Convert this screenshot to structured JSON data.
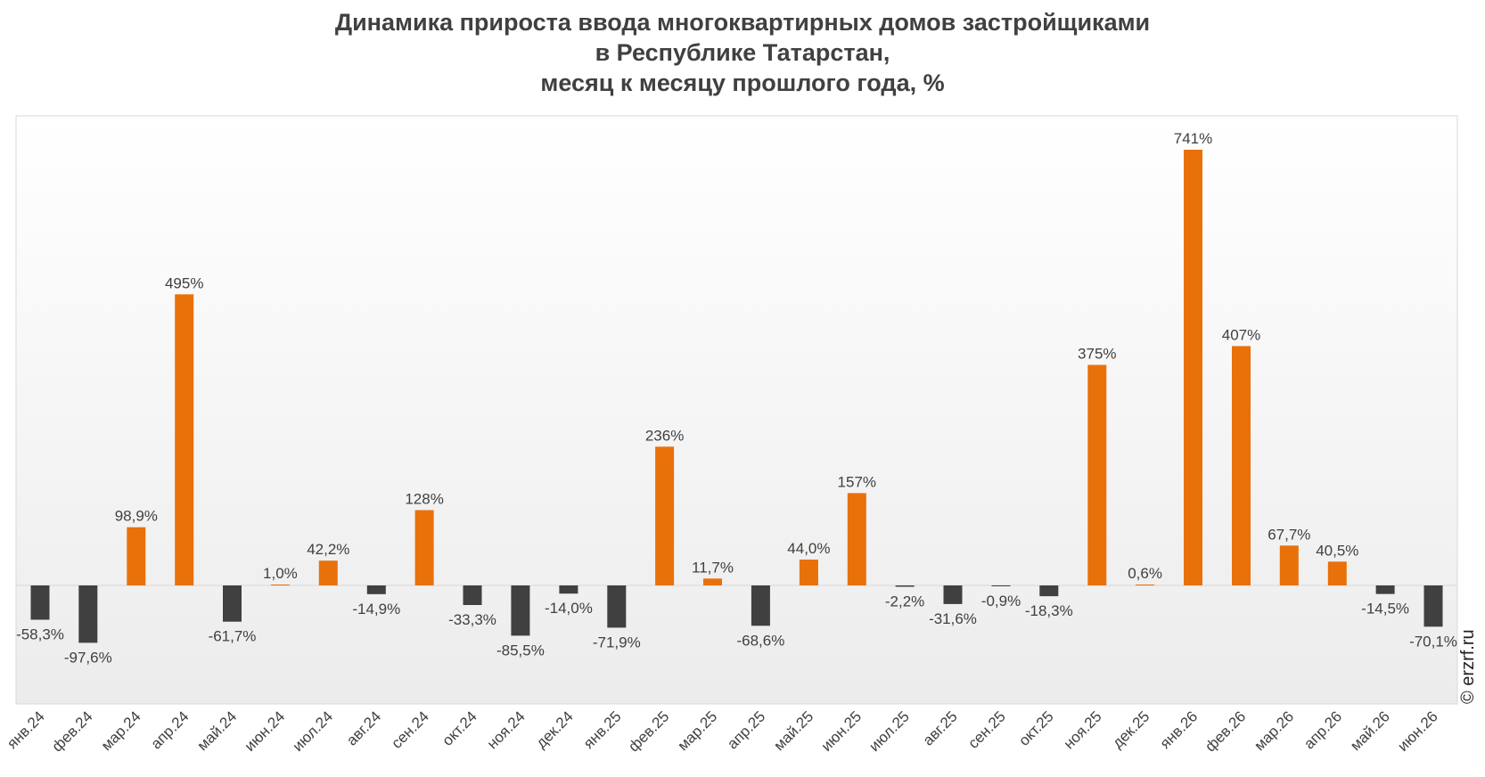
{
  "title_lines": [
    "Динамика прироста ввода многоквартирных домов застройщиками",
    "в Республике Татарстан,",
    "месяц к месяцу прошлого года, %"
  ],
  "watermark": "© erzrf.ru",
  "colors": {
    "positive": "#E8710A",
    "negative": "#404040",
    "label": "#404040",
    "plot_border": "#d9d9d9"
  },
  "chart_data": {
    "type": "bar",
    "title": "Динамика прироста ввода многоквартирных домов застройщиками в Республике Татарстан, месяц к месяцу прошлого года, %",
    "xlabel": "",
    "ylabel": "",
    "unit": "%",
    "grid": false,
    "legend": "none",
    "ylim": [
      -200,
      780
    ],
    "categories": [
      "янв.24",
      "фев.24",
      "мар.24",
      "апр.24",
      "май.24",
      "июн.24",
      "июл.24",
      "авг.24",
      "сен.24",
      "окт.24",
      "ноя.24",
      "дек.24",
      "янв.25",
      "фев.25",
      "мар.25",
      "апр.25",
      "май.25",
      "июн.25",
      "июл.25",
      "авг.25",
      "сен.25",
      "окт.25",
      "ноя.25",
      "дек.25",
      "янв.26",
      "фев.26",
      "мар.26",
      "апр.26",
      "май.26",
      "июн.26"
    ],
    "values": [
      -58.3,
      -97.6,
      98.9,
      495,
      -61.7,
      1.0,
      42.2,
      -14.9,
      128,
      -33.3,
      -85.5,
      -14.0,
      -71.9,
      236,
      11.7,
      -68.6,
      44.0,
      157,
      -2.2,
      -31.6,
      -0.9,
      -18.3,
      375,
      0.6,
      741,
      407,
      67.7,
      40.5,
      -14.5,
      -70.1
    ],
    "data_labels": [
      "-58,3%",
      "-97,6%",
      "98,9%",
      "495%",
      "-61,7%",
      "1,0%",
      "42,2%",
      "-14,9%",
      "128%",
      "-33,3%",
      "-85,5%",
      "-14,0%",
      "-71,9%",
      "236%",
      "11,7%",
      "-68,6%",
      "44,0%",
      "157%",
      "-2,2%",
      "-31,6%",
      "-0,9%",
      "-18,3%",
      "375%",
      "0,6%",
      "741%",
      "407%",
      "67,7%",
      "40,5%",
      "-14,5%",
      "-70,1%"
    ]
  }
}
